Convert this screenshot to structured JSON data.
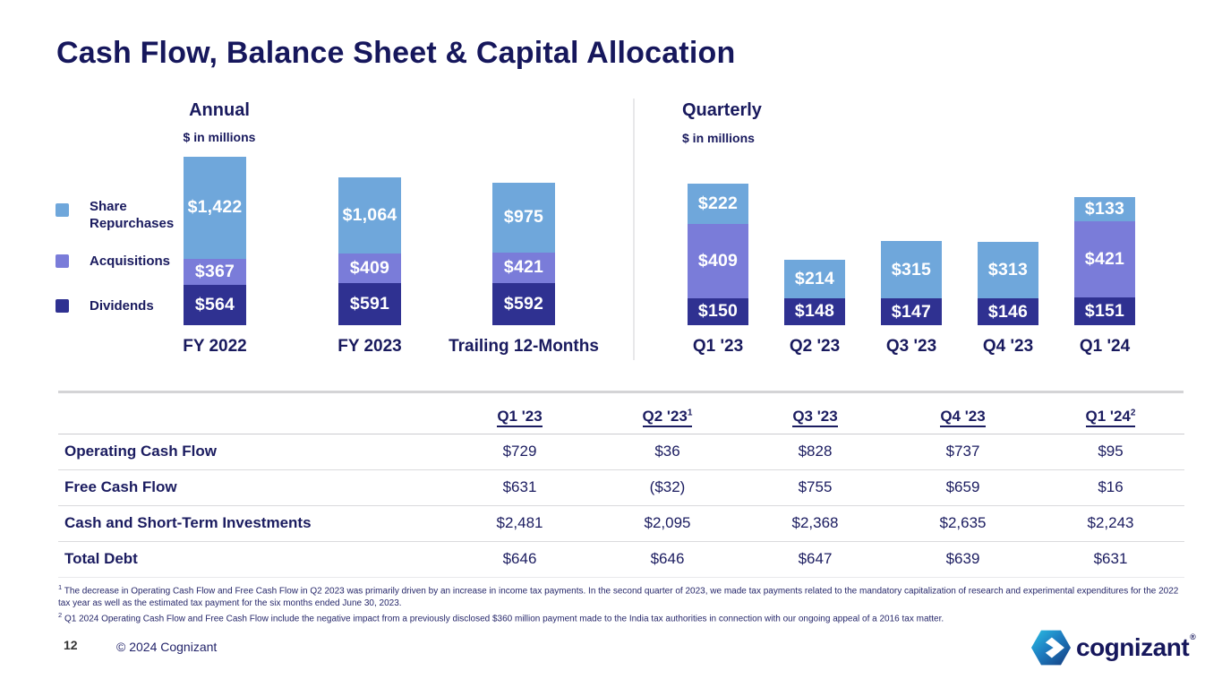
{
  "slide": {
    "title": "Cash Flow, Balance Sheet & Capital Allocation",
    "page_number": "12",
    "copyright": "© 2024 Cognizant",
    "logo_text": "cognizant",
    "logo_reg_mark": "®"
  },
  "colors": {
    "navy_text": "#191a5e",
    "share_repurchases": "#6fa7db",
    "acquisitions": "#7a7cd9",
    "dividends": "#2f3191",
    "divider_gray": "#e8e8ea",
    "table_rule_gray": "#d4d4d6"
  },
  "legend": {
    "items": [
      {
        "label": "Share Repurchases",
        "icon": "legend-swatch-blue"
      },
      {
        "label": "Acquisitions",
        "icon": "legend-swatch-purple"
      },
      {
        "label": "Dividends",
        "icon": "legend-swatch-navy"
      }
    ]
  },
  "chart_data": [
    {
      "type": "bar",
      "stacked": true,
      "title": "Annual",
      "subtitle": "$ in millions",
      "categories": [
        "FY 2022",
        "FY 2023",
        "Trailing 12-Months"
      ],
      "series": [
        {
          "name": "Share Repurchases",
          "color": "#6fa7db",
          "values": [
            1422,
            1064,
            975
          ],
          "labels": [
            "$1,422",
            "$1,064",
            "$975"
          ]
        },
        {
          "name": "Acquisitions",
          "color": "#7a7cd9",
          "values": [
            367,
            409,
            421
          ],
          "labels": [
            "$367",
            "$409",
            "$421"
          ]
        },
        {
          "name": "Dividends",
          "color": "#2f3191",
          "values": [
            564,
            591,
            592
          ],
          "labels": [
            "$564",
            "$591",
            "$592"
          ]
        }
      ],
      "legend_position": "left",
      "grid": false,
      "ylim": [
        0,
        2400
      ]
    },
    {
      "type": "bar",
      "stacked": true,
      "title": "Quarterly",
      "subtitle": "$ in millions",
      "categories": [
        "Q1 '23",
        "Q2 '23",
        "Q3 '23",
        "Q4 '23",
        "Q1 '24"
      ],
      "series": [
        {
          "name": "Share Repurchases",
          "color": "#6fa7db",
          "values": [
            222,
            214,
            315,
            313,
            133
          ],
          "labels": [
            "$222",
            "$214",
            "$315",
            "$313",
            "$133"
          ]
        },
        {
          "name": "Acquisitions",
          "color": "#7a7cd9",
          "values": [
            409,
            0,
            0,
            0,
            421
          ],
          "labels": [
            "$409",
            "",
            "",
            "",
            "$421"
          ]
        },
        {
          "name": "Dividends",
          "color": "#2f3191",
          "values": [
            150,
            148,
            147,
            146,
            151
          ],
          "labels": [
            "$150",
            "$148",
            "$147",
            "$146",
            "$151"
          ]
        }
      ],
      "legend_position": "none",
      "grid": false,
      "ylim": [
        0,
        800
      ]
    },
    {
      "type": "table",
      "columns": [
        {
          "label": "Q1 '23",
          "sup": ""
        },
        {
          "label": "Q2 '23",
          "sup": "1"
        },
        {
          "label": "Q3 '23",
          "sup": ""
        },
        {
          "label": "Q4 '23",
          "sup": ""
        },
        {
          "label": "Q1 '24",
          "sup": "2"
        }
      ],
      "rows": [
        {
          "label": "Operating Cash Flow",
          "values": [
            "$729",
            "$36",
            "$828",
            "$737",
            "$95"
          ]
        },
        {
          "label": "Free Cash Flow",
          "values": [
            "$631",
            "($32)",
            "$755",
            "$659",
            "$16"
          ]
        },
        {
          "label": "Cash and Short-Term Investments",
          "values": [
            "$2,481",
            "$2,095",
            "$2,368",
            "$2,635",
            "$2,243"
          ]
        },
        {
          "label": "Total Debt",
          "values": [
            "$646",
            "$646",
            "$647",
            "$639",
            "$631"
          ]
        }
      ]
    }
  ],
  "footnotes": [
    {
      "sup": "1",
      "text": "The decrease in Operating Cash Flow and Free Cash Flow in Q2 2023 was primarily driven by an increase in income tax payments. In the second quarter of 2023, we made tax payments related to the mandatory capitalization of research and experimental expenditures for the 2022 tax year as well as the estimated tax payment for the six months ended June 30, 2023."
    },
    {
      "sup": "2",
      "text": "Q1 2024 Operating Cash Flow and Free Cash Flow include the negative impact from a previously disclosed $360 million payment made to the India tax authorities in connection with our ongoing appeal of a 2016 tax matter."
    }
  ]
}
